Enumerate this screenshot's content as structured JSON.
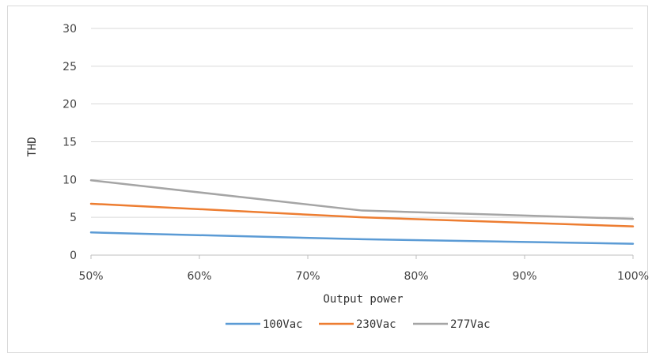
{
  "chart_data": {
    "type": "line",
    "x": [
      "50%",
      "75%",
      "100%"
    ],
    "x_values": [
      50,
      75,
      100
    ],
    "xlabel": "Output power",
    "ylabel": "THD",
    "xlim": [
      50,
      100
    ],
    "ylim": [
      0,
      30
    ],
    "x_ticks": [
      "50%",
      "60%",
      "70%",
      "80%",
      "90%",
      "100%"
    ],
    "x_tick_values": [
      50,
      60,
      70,
      80,
      90,
      100
    ],
    "y_ticks": [
      "0",
      "5",
      "10",
      "15",
      "20",
      "25",
      "30"
    ],
    "y_tick_values": [
      0,
      5,
      10,
      15,
      20,
      25,
      30
    ],
    "grid": true,
    "legend_position": "bottom",
    "series": [
      {
        "name": "100Vac",
        "color": "#5b9bd5",
        "values": [
          3.0,
          2.1,
          1.5
        ]
      },
      {
        "name": "230Vac",
        "color": "#ed7d31",
        "values": [
          6.8,
          5.0,
          3.8
        ]
      },
      {
        "name": "277Vac",
        "color": "#a5a5a5",
        "values": [
          9.9,
          5.9,
          4.8
        ]
      }
    ]
  }
}
